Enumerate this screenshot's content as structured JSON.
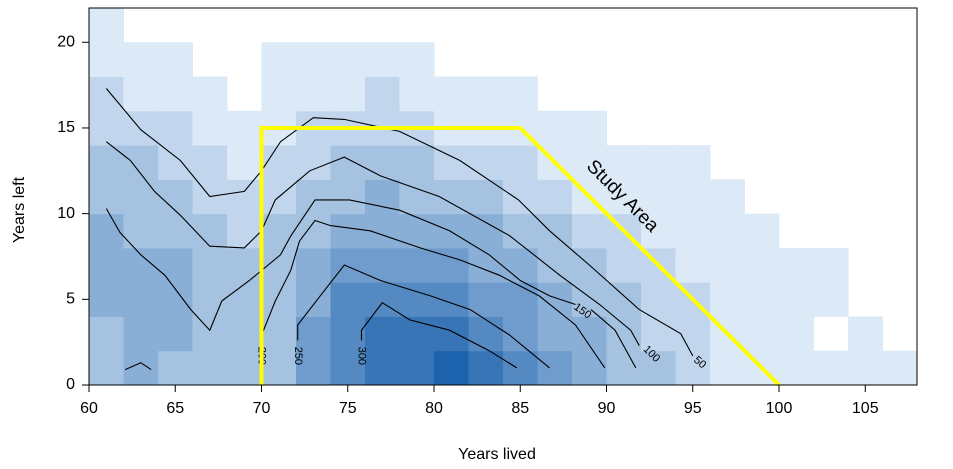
{
  "chart_data": {
    "type": "heatmap",
    "x_label": "Years lived",
    "y_label": "Years left",
    "xlim": [
      60,
      108
    ],
    "ylim": [
      0,
      22
    ],
    "xticks": [
      60,
      65,
      70,
      75,
      80,
      85,
      90,
      95,
      100,
      105
    ],
    "yticks": [
      0,
      5,
      10,
      15,
      20
    ],
    "x_bins": [
      60,
      62,
      64,
      66,
      68,
      70,
      72,
      74,
      76,
      78,
      80,
      82,
      84,
      86,
      88,
      90,
      92,
      94,
      96,
      98,
      100,
      102,
      104,
      106,
      108
    ],
    "y_bins": [
      0,
      2,
      4,
      6,
      8,
      10,
      12,
      14,
      16,
      18,
      20,
      22
    ],
    "colormap": [
      "#dce9f6",
      "#1d62ad"
    ],
    "z": [
      [
        3,
        4,
        3,
        3,
        3,
        3,
        5,
        6,
        7,
        7,
        8,
        7,
        6,
        5,
        4,
        3,
        3,
        2,
        1,
        1,
        1,
        1,
        1,
        1
      ],
      [
        3,
        4,
        4,
        3,
        3,
        3,
        5,
        6,
        7,
        7,
        7,
        6,
        5,
        4,
        4,
        3,
        2,
        2,
        1,
        1,
        1,
        0,
        1,
        0
      ],
      [
        4,
        4,
        4,
        3,
        3,
        3,
        4,
        6,
        6,
        6,
        6,
        5,
        5,
        4,
        3,
        3,
        2,
        2,
        1,
        1,
        1,
        1,
        0,
        0
      ],
      [
        4,
        4,
        4,
        3,
        3,
        3,
        4,
        5,
        5,
        5,
        5,
        4,
        4,
        3,
        3,
        2,
        2,
        1,
        1,
        1,
        1,
        1,
        0,
        0
      ],
      [
        4,
        3,
        3,
        3,
        2,
        3,
        3,
        4,
        4,
        4,
        4,
        4,
        3,
        3,
        2,
        2,
        1,
        1,
        1,
        1,
        0,
        0,
        0,
        0
      ],
      [
        3,
        3,
        3,
        2,
        2,
        2,
        3,
        3,
        4,
        3,
        3,
        3,
        2,
        2,
        1,
        1,
        1,
        1,
        1,
        0,
        0,
        0,
        0,
        0
      ],
      [
        3,
        3,
        2,
        2,
        1,
        2,
        2,
        3,
        3,
        3,
        2,
        2,
        2,
        1,
        1,
        1,
        1,
        1,
        0,
        0,
        0,
        0,
        0,
        0
      ],
      [
        2,
        2,
        2,
        1,
        1,
        1,
        2,
        2,
        2,
        2,
        1,
        1,
        1,
        1,
        1,
        0,
        0,
        0,
        0,
        0,
        0,
        0,
        0,
        0
      ],
      [
        2,
        1,
        1,
        1,
        0,
        1,
        1,
        1,
        2,
        1,
        1,
        1,
        1,
        0,
        0,
        0,
        0,
        0,
        0,
        0,
        0,
        0,
        0,
        0
      ],
      [
        1,
        1,
        1,
        0,
        0,
        1,
        1,
        1,
        1,
        1,
        0,
        0,
        0,
        0,
        0,
        0,
        0,
        0,
        0,
        0,
        0,
        0,
        0,
        0
      ],
      [
        1,
        0,
        0,
        0,
        0,
        0,
        0,
        0,
        0,
        0,
        0,
        0,
        0,
        0,
        0,
        0,
        0,
        0,
        0,
        0,
        0,
        0,
        0,
        0
      ]
    ],
    "contour_color": "#000000",
    "contours": [
      {
        "level": 50,
        "label_at": [
          95.4,
          1.3
        ],
        "label_angle": 40,
        "x": [
          61.0,
          63.0,
          65.3,
          67.0,
          69.0,
          70.0,
          71.1,
          73.0,
          74.8,
          78.0,
          81.5,
          84.9,
          86.7,
          89.0,
          91.9,
          94.3,
          95.0
        ],
        "y": [
          17.3,
          14.9,
          13.1,
          11.0,
          11.3,
          12.5,
          14.2,
          15.6,
          15.5,
          14.8,
          13.1,
          10.8,
          9.0,
          7.0,
          4.4,
          3.0,
          1.7
        ]
      },
      {
        "level": 100,
        "label_at": [
          92.6,
          1.8
        ],
        "label_angle": 45,
        "x": [
          61.0,
          62.4,
          63.8,
          65.3,
          67.0,
          69.0,
          70.0,
          70.8,
          72.8,
          74.8,
          76.9,
          80.3,
          84.4,
          87.3,
          89.6,
          91.4,
          91.9
        ],
        "y": [
          14.2,
          13.1,
          11.3,
          9.9,
          8.1,
          8.0,
          9.0,
          10.8,
          12.5,
          13.3,
          12.2,
          11.0,
          8.7,
          6.4,
          4.7,
          3.2,
          2.3
        ]
      },
      {
        "level": 150,
        "label_at": [
          88.6,
          4.3
        ],
        "label_angle": 35,
        "x": [
          61.0,
          61.8,
          63.0,
          64.4,
          65.9,
          67.0,
          67.7,
          69.3,
          71.1,
          71.7,
          73.1,
          75.1,
          78.0,
          80.9,
          83.2,
          85.0,
          86.7,
          88.2,
          null,
          89.1,
          90.5,
          91.7
        ],
        "y": [
          10.3,
          8.9,
          7.6,
          6.4,
          4.4,
          3.2,
          4.9,
          6.1,
          7.6,
          8.7,
          10.8,
          10.8,
          10.2,
          9.0,
          7.6,
          6.1,
          5.2,
          4.7,
          null,
          4.4,
          3.2,
          1.0
        ]
      },
      {
        "level": 200,
        "label_at": [
          70.0,
          1.7
        ],
        "label_angle": 90,
        "x": [
          70.0,
          70.8,
          71.7,
          72.2,
          73.1,
          74.0,
          76.3,
          79.2,
          81.5,
          83.8,
          86.1,
          88.2,
          89.9
        ],
        "y": [
          2.9,
          4.9,
          6.7,
          8.4,
          9.6,
          9.3,
          9.0,
          8.0,
          7.3,
          6.4,
          5.2,
          3.5,
          1.0
        ]
      },
      {
        "level": 250,
        "label_at": [
          72.1,
          1.7
        ],
        "label_angle": 90,
        "x": [
          72.1,
          72.1,
          73.4,
          74.8,
          76.9,
          79.8,
          82.1,
          84.4,
          86.7
        ],
        "y": [
          2.6,
          3.5,
          5.2,
          7.0,
          6.1,
          5.2,
          4.4,
          2.9,
          1.0
        ]
      },
      {
        "level": 300,
        "label_at": [
          75.8,
          1.7
        ],
        "label_angle": 90,
        "x": [
          75.8,
          75.8,
          77.0,
          78.6,
          80.9,
          83.2,
          84.8,
          null,
          62.1,
          63.0,
          63.6
        ],
        "y": [
          2.6,
          3.2,
          4.8,
          3.8,
          3.2,
          2.0,
          1.0,
          null,
          0.9,
          1.3,
          0.9
        ]
      }
    ],
    "annotation": {
      "text": "Study Area",
      "at": [
        90.9,
        11.0
      ],
      "angle": 45,
      "color": "#ffff00",
      "x": [
        70,
        70,
        85,
        100
      ],
      "y": [
        0,
        15,
        15,
        0
      ]
    }
  }
}
